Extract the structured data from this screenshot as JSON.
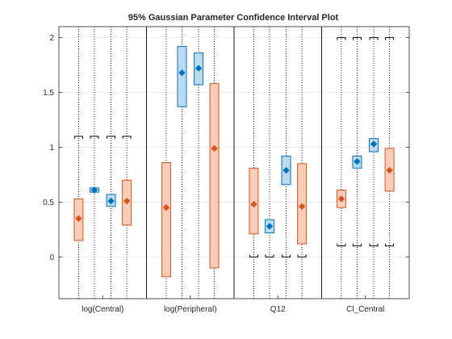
{
  "chart_data": {
    "type": "interval",
    "title": "95% Gaussian Parameter Confidence Interval Plot",
    "xlabel": "",
    "ylabel": "",
    "ylim": [
      -0.38,
      2.1
    ],
    "yticks": [
      0,
      0.5,
      1,
      1.5,
      2
    ],
    "ytick_labels": [
      "0",
      "0.5",
      "1",
      "1.5",
      "2"
    ],
    "grid": "y",
    "categories": [
      "log(Central)",
      "log(Peripheral)",
      "Q12",
      "Cl_Central"
    ],
    "colors": {
      "blue_fill": "#bcd9ee",
      "blue_edge": "#0072bd",
      "orange_fill": "#f6cdb9",
      "orange_edge": "#d95319",
      "bound": "#000000",
      "grid": "#e6e6e6"
    },
    "groups": [
      {
        "category": "log(Central)",
        "bounds": [
          1.1,
          1.1,
          1.1,
          1.1
        ],
        "intervals": [
          {
            "color": "orange",
            "low": 0.15,
            "high": 0.53,
            "estimate": 0.35
          },
          {
            "color": "blue",
            "low": 0.59,
            "high": 0.63,
            "estimate": 0.61
          },
          {
            "color": "blue",
            "low": 0.46,
            "high": 0.57,
            "estimate": 0.51
          },
          {
            "color": "orange",
            "low": 0.29,
            "high": 0.7,
            "estimate": 0.51
          }
        ]
      },
      {
        "category": "log(Peripheral)",
        "bounds": [
          null,
          null,
          null,
          null
        ],
        "intervals": [
          {
            "color": "orange",
            "low": -0.18,
            "high": 0.86,
            "estimate": 0.45
          },
          {
            "color": "blue",
            "low": 1.37,
            "high": 1.92,
            "estimate": 1.68
          },
          {
            "color": "blue",
            "low": 1.57,
            "high": 1.86,
            "estimate": 1.72
          },
          {
            "color": "orange",
            "low": -0.1,
            "high": 1.58,
            "estimate": 0.99
          }
        ]
      },
      {
        "category": "Q12",
        "bounds": [
          0,
          0,
          0,
          0
        ],
        "intervals": [
          {
            "color": "orange",
            "low": 0.21,
            "high": 0.81,
            "estimate": 0.48
          },
          {
            "color": "blue",
            "low": 0.22,
            "high": 0.34,
            "estimate": 0.28
          },
          {
            "color": "blue",
            "low": 0.66,
            "high": 0.92,
            "estimate": 0.79
          },
          {
            "color": "orange",
            "low": 0.12,
            "high": 0.85,
            "estimate": 0.46
          }
        ]
      },
      {
        "category": "Cl_Central",
        "bounds": [
          [
            0.1,
            2.0
          ],
          [
            0.1,
            2.0
          ],
          [
            0.1,
            2.0
          ],
          [
            0.1,
            2.0
          ]
        ],
        "intervals": [
          {
            "color": "orange",
            "low": 0.45,
            "high": 0.61,
            "estimate": 0.53
          },
          {
            "color": "blue",
            "low": 0.81,
            "high": 0.92,
            "estimate": 0.87
          },
          {
            "color": "blue",
            "low": 0.96,
            "high": 1.08,
            "estimate": 1.03
          },
          {
            "color": "orange",
            "low": 0.6,
            "high": 0.99,
            "estimate": 0.79
          }
        ]
      }
    ]
  }
}
